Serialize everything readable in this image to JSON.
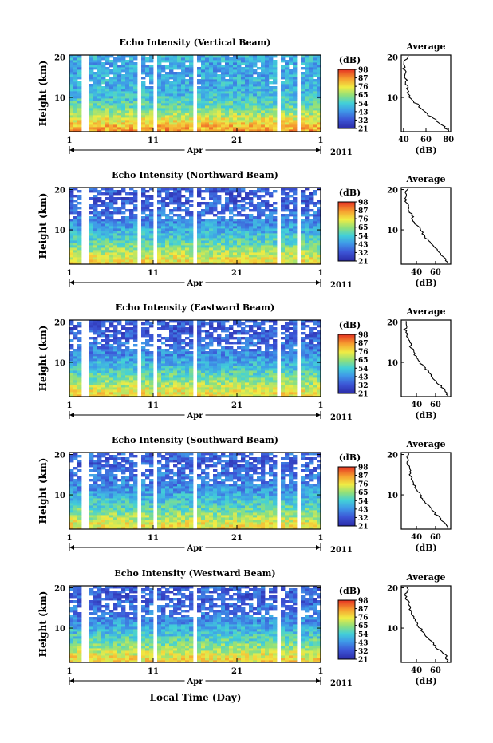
{
  "figure": {
    "xlabel_bottom": "Local Time (Day)",
    "colorbar": {
      "unit_label": "(dB)",
      "ticks": [
        "98",
        "87",
        "76",
        "65",
        "54",
        "43",
        "32",
        "21"
      ],
      "range": [
        21,
        98
      ]
    },
    "panel_common": {
      "ylabel": "Height (km)",
      "yticks": [
        "20",
        "10"
      ],
      "xticks": [
        "1",
        "11",
        "21",
        "1"
      ],
      "month_label": "Apr",
      "year_label": "2011",
      "avg_title": "Average",
      "avg_xlabel": "(dB)"
    }
  },
  "chart_data": [
    {
      "type": "heatmap",
      "title": "Echo Intensity (Vertical Beam)",
      "x_range_days": [
        1,
        31
      ],
      "y_range_km": [
        1.5,
        20.5
      ],
      "data_gaps_days": [
        [
          2.5,
          3.4
        ],
        [
          9.3,
          9.6
        ],
        [
          10.3,
          10.7
        ],
        [
          11.0,
          11.5
        ],
        [
          16.0,
          16.3
        ],
        [
          26.0,
          26.3
        ],
        [
          26.7,
          26.9
        ],
        [
          27.5,
          27.8
        ],
        [
          28.2,
          28.8
        ]
      ],
      "average_profile": {
        "xticks": [
          "40",
          "60",
          "80"
        ],
        "xlim": [
          38,
          82
        ],
        "height_km": [
          2,
          3,
          4,
          5,
          6,
          8,
          10,
          12,
          14,
          16,
          18,
          20
        ],
        "db": [
          79,
          75,
          70,
          66,
          60,
          53,
          46,
          43,
          42,
          41,
          40,
          43
        ]
      }
    },
    {
      "type": "heatmap",
      "title": "Echo Intensity (Northward Beam)",
      "x_range_days": [
        1,
        31
      ],
      "y_range_km": [
        1.5,
        20.5
      ],
      "data_gaps_days": [
        [
          2.5,
          3.4
        ],
        [
          9.3,
          9.6
        ],
        [
          10.3,
          10.7
        ],
        [
          11.0,
          11.5
        ],
        [
          16.0,
          16.3
        ],
        [
          26.0,
          26.3
        ],
        [
          26.7,
          26.9
        ],
        [
          27.5,
          27.8
        ],
        [
          28.2,
          28.8
        ]
      ],
      "average_profile": {
        "xticks": [
          "40",
          "60"
        ],
        "xlim": [
          24,
          76
        ],
        "height_km": [
          2,
          3,
          4,
          5,
          6,
          8,
          10,
          12,
          14,
          16,
          18,
          20
        ],
        "db": [
          72,
          70,
          66,
          62,
          57,
          50,
          44,
          38,
          34,
          31,
          28,
          30
        ]
      }
    },
    {
      "type": "heatmap",
      "title": "Echo Intensity (Eastward Beam)",
      "x_range_days": [
        1,
        31
      ],
      "y_range_km": [
        1.5,
        20.5
      ],
      "data_gaps_days": [
        [
          2.5,
          3.4
        ],
        [
          9.3,
          9.6
        ],
        [
          10.3,
          10.7
        ],
        [
          11.0,
          11.5
        ],
        [
          16.0,
          16.3
        ],
        [
          26.0,
          26.3
        ],
        [
          26.7,
          26.9
        ],
        [
          27.5,
          27.8
        ],
        [
          28.2,
          28.8
        ]
      ],
      "average_profile": {
        "xticks": [
          "40",
          "60"
        ],
        "xlim": [
          24,
          76
        ],
        "height_km": [
          2,
          3,
          4,
          5,
          6,
          8,
          10,
          12,
          14,
          16,
          18,
          20
        ],
        "db": [
          73,
          70,
          66,
          62,
          58,
          51,
          44,
          38,
          34,
          31,
          28,
          30
        ]
      }
    },
    {
      "type": "heatmap",
      "title": "Echo Intensity (Southward Beam)",
      "x_range_days": [
        1,
        31
      ],
      "y_range_km": [
        1.5,
        20.5
      ],
      "data_gaps_days": [
        [
          2.5,
          3.4
        ],
        [
          9.3,
          9.6
        ],
        [
          10.3,
          10.7
        ],
        [
          11.0,
          11.5
        ],
        [
          16.0,
          16.3
        ],
        [
          26.0,
          26.3
        ],
        [
          26.7,
          26.9
        ],
        [
          27.5,
          27.8
        ],
        [
          28.2,
          28.8
        ]
      ],
      "average_profile": {
        "xticks": [
          "40",
          "60"
        ],
        "xlim": [
          24,
          76
        ],
        "height_km": [
          2,
          3,
          4,
          5,
          6,
          8,
          10,
          12,
          14,
          16,
          18,
          20
        ],
        "db": [
          72,
          70,
          65,
          61,
          57,
          50,
          44,
          38,
          35,
          33,
          30,
          31
        ]
      }
    },
    {
      "type": "heatmap",
      "title": "Echo Intensity (Westward Beam)",
      "x_range_days": [
        1,
        31
      ],
      "y_range_km": [
        1.5,
        20.5
      ],
      "data_gaps_days": [
        [
          2.5,
          3.4
        ],
        [
          9.3,
          9.6
        ],
        [
          10.3,
          10.7
        ],
        [
          11.0,
          11.5
        ],
        [
          16.0,
          16.3
        ],
        [
          26.0,
          26.3
        ],
        [
          26.7,
          26.9
        ],
        [
          27.5,
          27.8
        ],
        [
          28.2,
          28.8
        ]
      ],
      "average_profile": {
        "xticks": [
          "40",
          "60"
        ],
        "xlim": [
          24,
          76
        ],
        "height_km": [
          2,
          3,
          4,
          5,
          6,
          8,
          10,
          12,
          14,
          16,
          18,
          20
        ],
        "db": [
          73,
          71,
          67,
          62,
          58,
          51,
          44,
          38,
          34,
          32,
          29,
          31
        ]
      }
    }
  ]
}
